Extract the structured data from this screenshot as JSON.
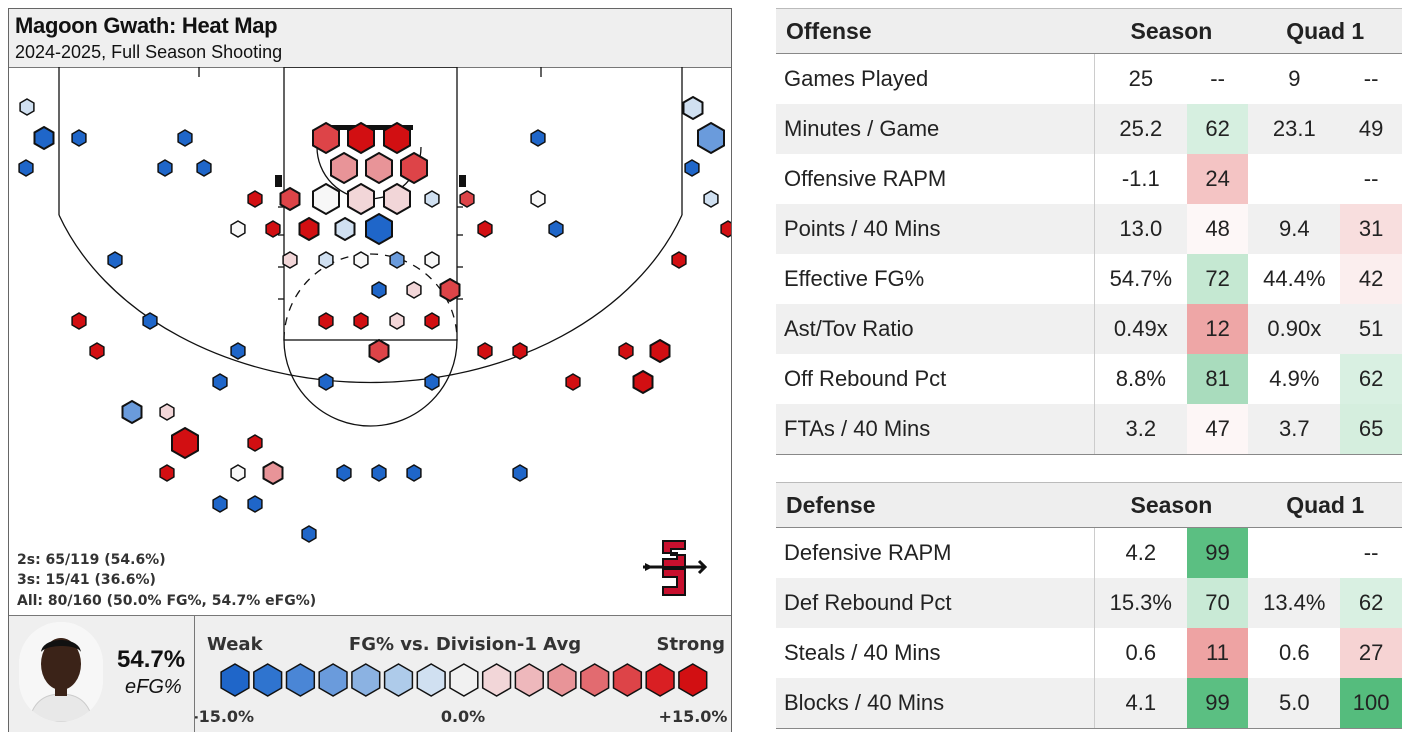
{
  "court": {
    "title": "Magoon Gwath: Heat Map",
    "subtitle": "2024-2025, Full Season Shooting",
    "stats": {
      "twos": "2s: 65/119 (54.6%)",
      "threes": "3s: 15/41 (36.6%)",
      "all": "All: 80/160 (50.0% FG%, 54.7% eFG%)"
    },
    "efg_value": "54.7%",
    "efg_label": "eFG%",
    "logo": "SDSU"
  },
  "legend": {
    "title": "FG% vs. Division-1 Avg",
    "weak": "Weak",
    "strong": "Strong",
    "min": "-15.0%",
    "mid": "0.0%",
    "max": "+15.0%",
    "colors": [
      "#1f66c9",
      "#2f74cf",
      "#4a86d6",
      "#6a9bdc",
      "#8bb2e2",
      "#aecbea",
      "#d0e0f1",
      "#f1f1f1",
      "#f2d6d8",
      "#eeb8bc",
      "#e89498",
      "#e26b70",
      "#dd4448",
      "#d91f23",
      "#d20f12"
    ]
  },
  "chart_data": {
    "type": "heatmap",
    "title": "Magoon Gwath: Heat Map",
    "subtitle": "2024-2025, Full Season Shooting",
    "color_scale": {
      "min": -15.0,
      "mid": 0.0,
      "max": 15.0,
      "label": "FG% vs. Division-1 Avg"
    },
    "summary": {
      "two_made": 65,
      "two_att": 119,
      "three_made": 15,
      "three_att": 41,
      "all_made": 80,
      "all_att": 160,
      "fg_pct": 50.0,
      "efg_pct": 54.7
    }
  },
  "offense": {
    "header": {
      "label": "Offense",
      "season": "Season",
      "quad": "Quad 1"
    },
    "rows": [
      {
        "label": "Games Played",
        "season": "25",
        "season_pct": "--",
        "quad": "9",
        "quad_pct": "--",
        "sc": "",
        "qc": ""
      },
      {
        "label": "Minutes / Game",
        "season": "25.2",
        "season_pct": "62",
        "quad": "23.1",
        "quad_pct": "49",
        "sc": "#d6efe0",
        "qc": ""
      },
      {
        "label": "Offensive RAPM",
        "season": "-1.1",
        "season_pct": "24",
        "quad": "",
        "quad_pct": "--",
        "sc": "#f4c4c4",
        "qc": ""
      },
      {
        "label": "Points / 40 Mins",
        "season": "13.0",
        "season_pct": "48",
        "quad": "9.4",
        "quad_pct": "31",
        "sc": "#fdf7f7",
        "qc": "#f8dede"
      },
      {
        "label": "Effective FG%",
        "season": "54.7%",
        "season_pct": "72",
        "quad": "44.4%",
        "quad_pct": "42",
        "sc": "#c5e8d2",
        "qc": "#fbeeee"
      },
      {
        "label": "Ast/Tov Ratio",
        "season": "0.49x",
        "season_pct": "12",
        "quad": "0.90x",
        "quad_pct": "51",
        "sc": "#eea6a6",
        "qc": ""
      },
      {
        "label": "Off Rebound Pct",
        "season": "8.8%",
        "season_pct": "81",
        "quad": "4.9%",
        "quad_pct": "62",
        "sc": "#a9dcbd",
        "qc": "#d9f0e2"
      },
      {
        "label": "FTAs / 40 Mins",
        "season": "3.2",
        "season_pct": "47",
        "quad": "3.7",
        "quad_pct": "65",
        "sc": "#fdf6f6",
        "qc": "#d5eede"
      }
    ]
  },
  "defense": {
    "header": {
      "label": "Defense",
      "season": "Season",
      "quad": "Quad 1"
    },
    "rows": [
      {
        "label": "Defensive RAPM",
        "season": "4.2",
        "season_pct": "99",
        "quad": "",
        "quad_pct": "--",
        "sc": "#5bbf82",
        "qc": ""
      },
      {
        "label": "Def Rebound Pct",
        "season": "15.3%",
        "season_pct": "70",
        "quad": "13.4%",
        "quad_pct": "62",
        "sc": "#c9ead6",
        "qc": "#d9f0e2"
      },
      {
        "label": "Steals / 40 Mins",
        "season": "0.6",
        "season_pct": "11",
        "quad": "0.6",
        "quad_pct": "27",
        "sc": "#eea3a3",
        "qc": "#f6d3d3"
      },
      {
        "label": "Blocks / 40 Mins",
        "season": "4.1",
        "season_pct": "99",
        "quad": "5.0",
        "quad_pct": "100",
        "sc": "#5bbf82",
        "qc": "#55bc7d"
      }
    ]
  }
}
